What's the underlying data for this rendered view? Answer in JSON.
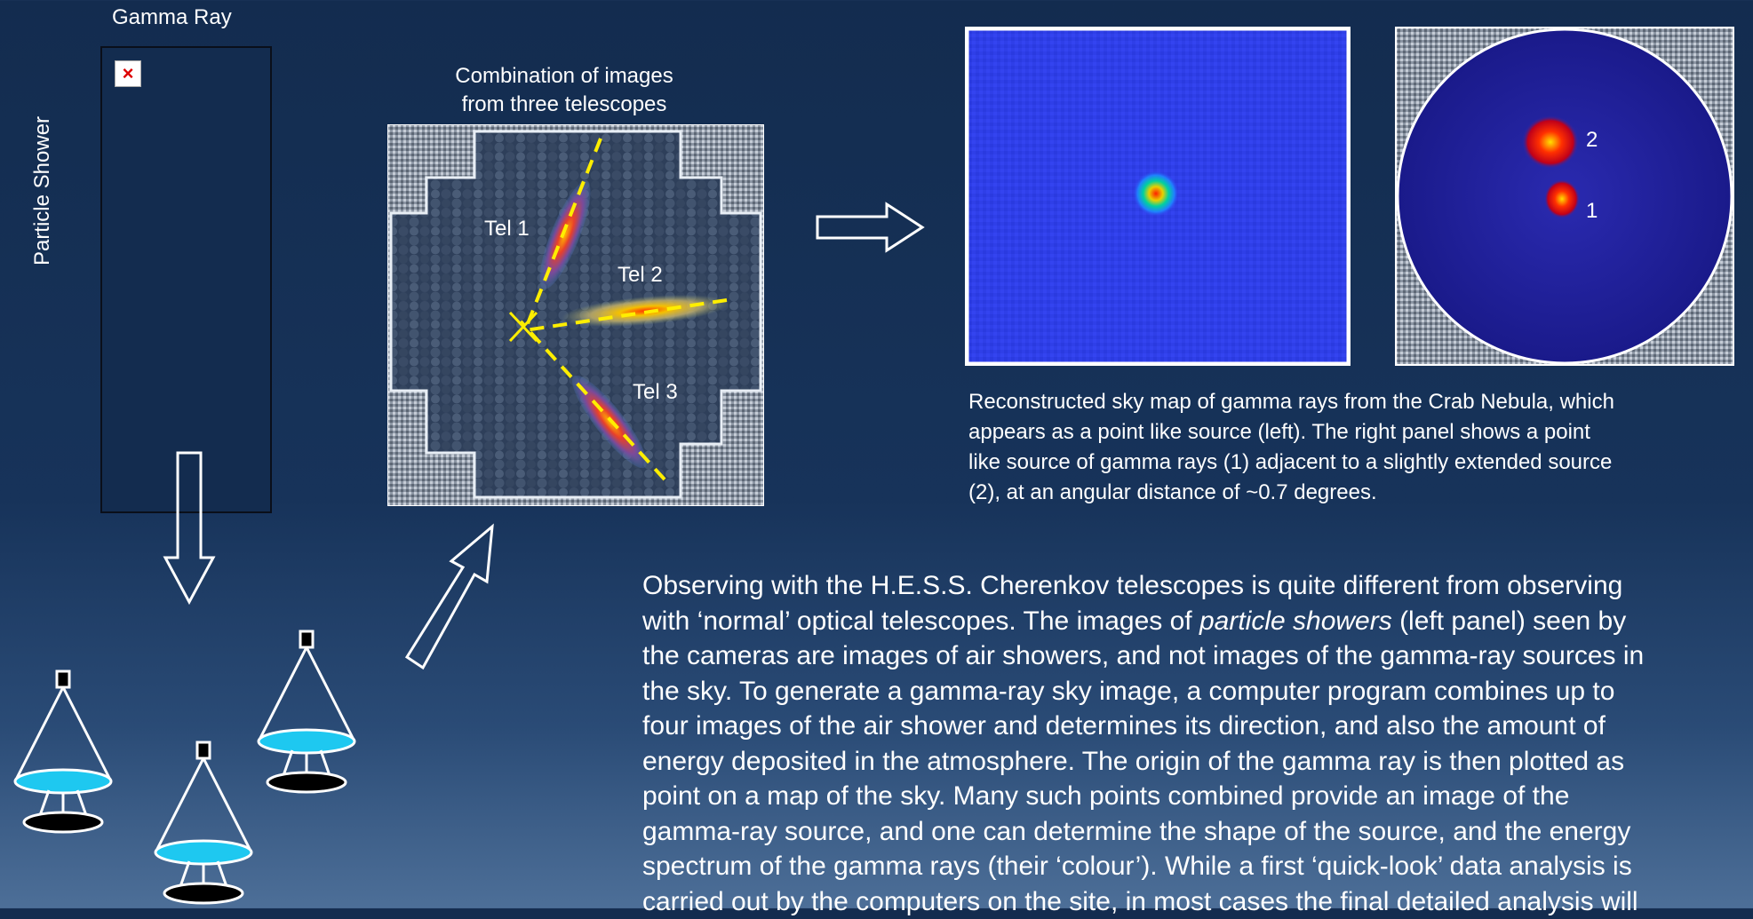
{
  "left": {
    "gamma_ray_label": "Gamma Ray",
    "particle_shower_label": "Particle Shower",
    "broken_image_glyph": "×"
  },
  "combination": {
    "title_line1": "Combination of images",
    "title_line2": "from  three telescopes",
    "tel1": "Tel 1",
    "tel2": "Tel 2",
    "tel3": "Tel 3"
  },
  "skymaps": {
    "source_label_2": "2",
    "source_label_1": "1",
    "caption_lines": [
      "Reconstructed sky map of gamma rays from the Crab Nebula, which",
      "appears as a point like source (left).  The right panel shows a point",
      "like source of gamma rays (1)  adjacent to a slightly extended source",
      "(2), at an angular distance of ~0.7 degrees."
    ]
  },
  "description": {
    "line1": "Observing with the H.E.S.S. Cherenkov telescopes is quite different from observing",
    "line2_before": "with ‘normal’ optical  telescopes. The images of ",
    "line2_italic": "particle showers",
    "line2_after": " (left panel) seen by",
    "line3": "the cameras are images of air showers, and not images of the gamma-ray sources in",
    "line4": "the sky. To generate a gamma-ray sky image, a computer program combines up to",
    "line5": "four images of the air shower and determines its direction, and also the amount of",
    "line6": "energy deposited in the atmosphere. The origin of the gamma ray is then plotted as",
    "line7": "point on a map of the sky. Many such points combined provide an image of the",
    "line8": "gamma-ray source, and one can determine the shape of the source, and the energy",
    "line9": "spectrum of the gamma rays (their ‘colour’). While a first ‘quick-look’ data analysis is",
    "line10": "carried out by the computers on the site, in most cases the final detailed analysis will"
  },
  "colors": {
    "background": "#17335a",
    "dish": "#1ec8f0",
    "ellipse_axis": "#ffee00",
    "sky_panel": "#2f3fe8"
  }
}
